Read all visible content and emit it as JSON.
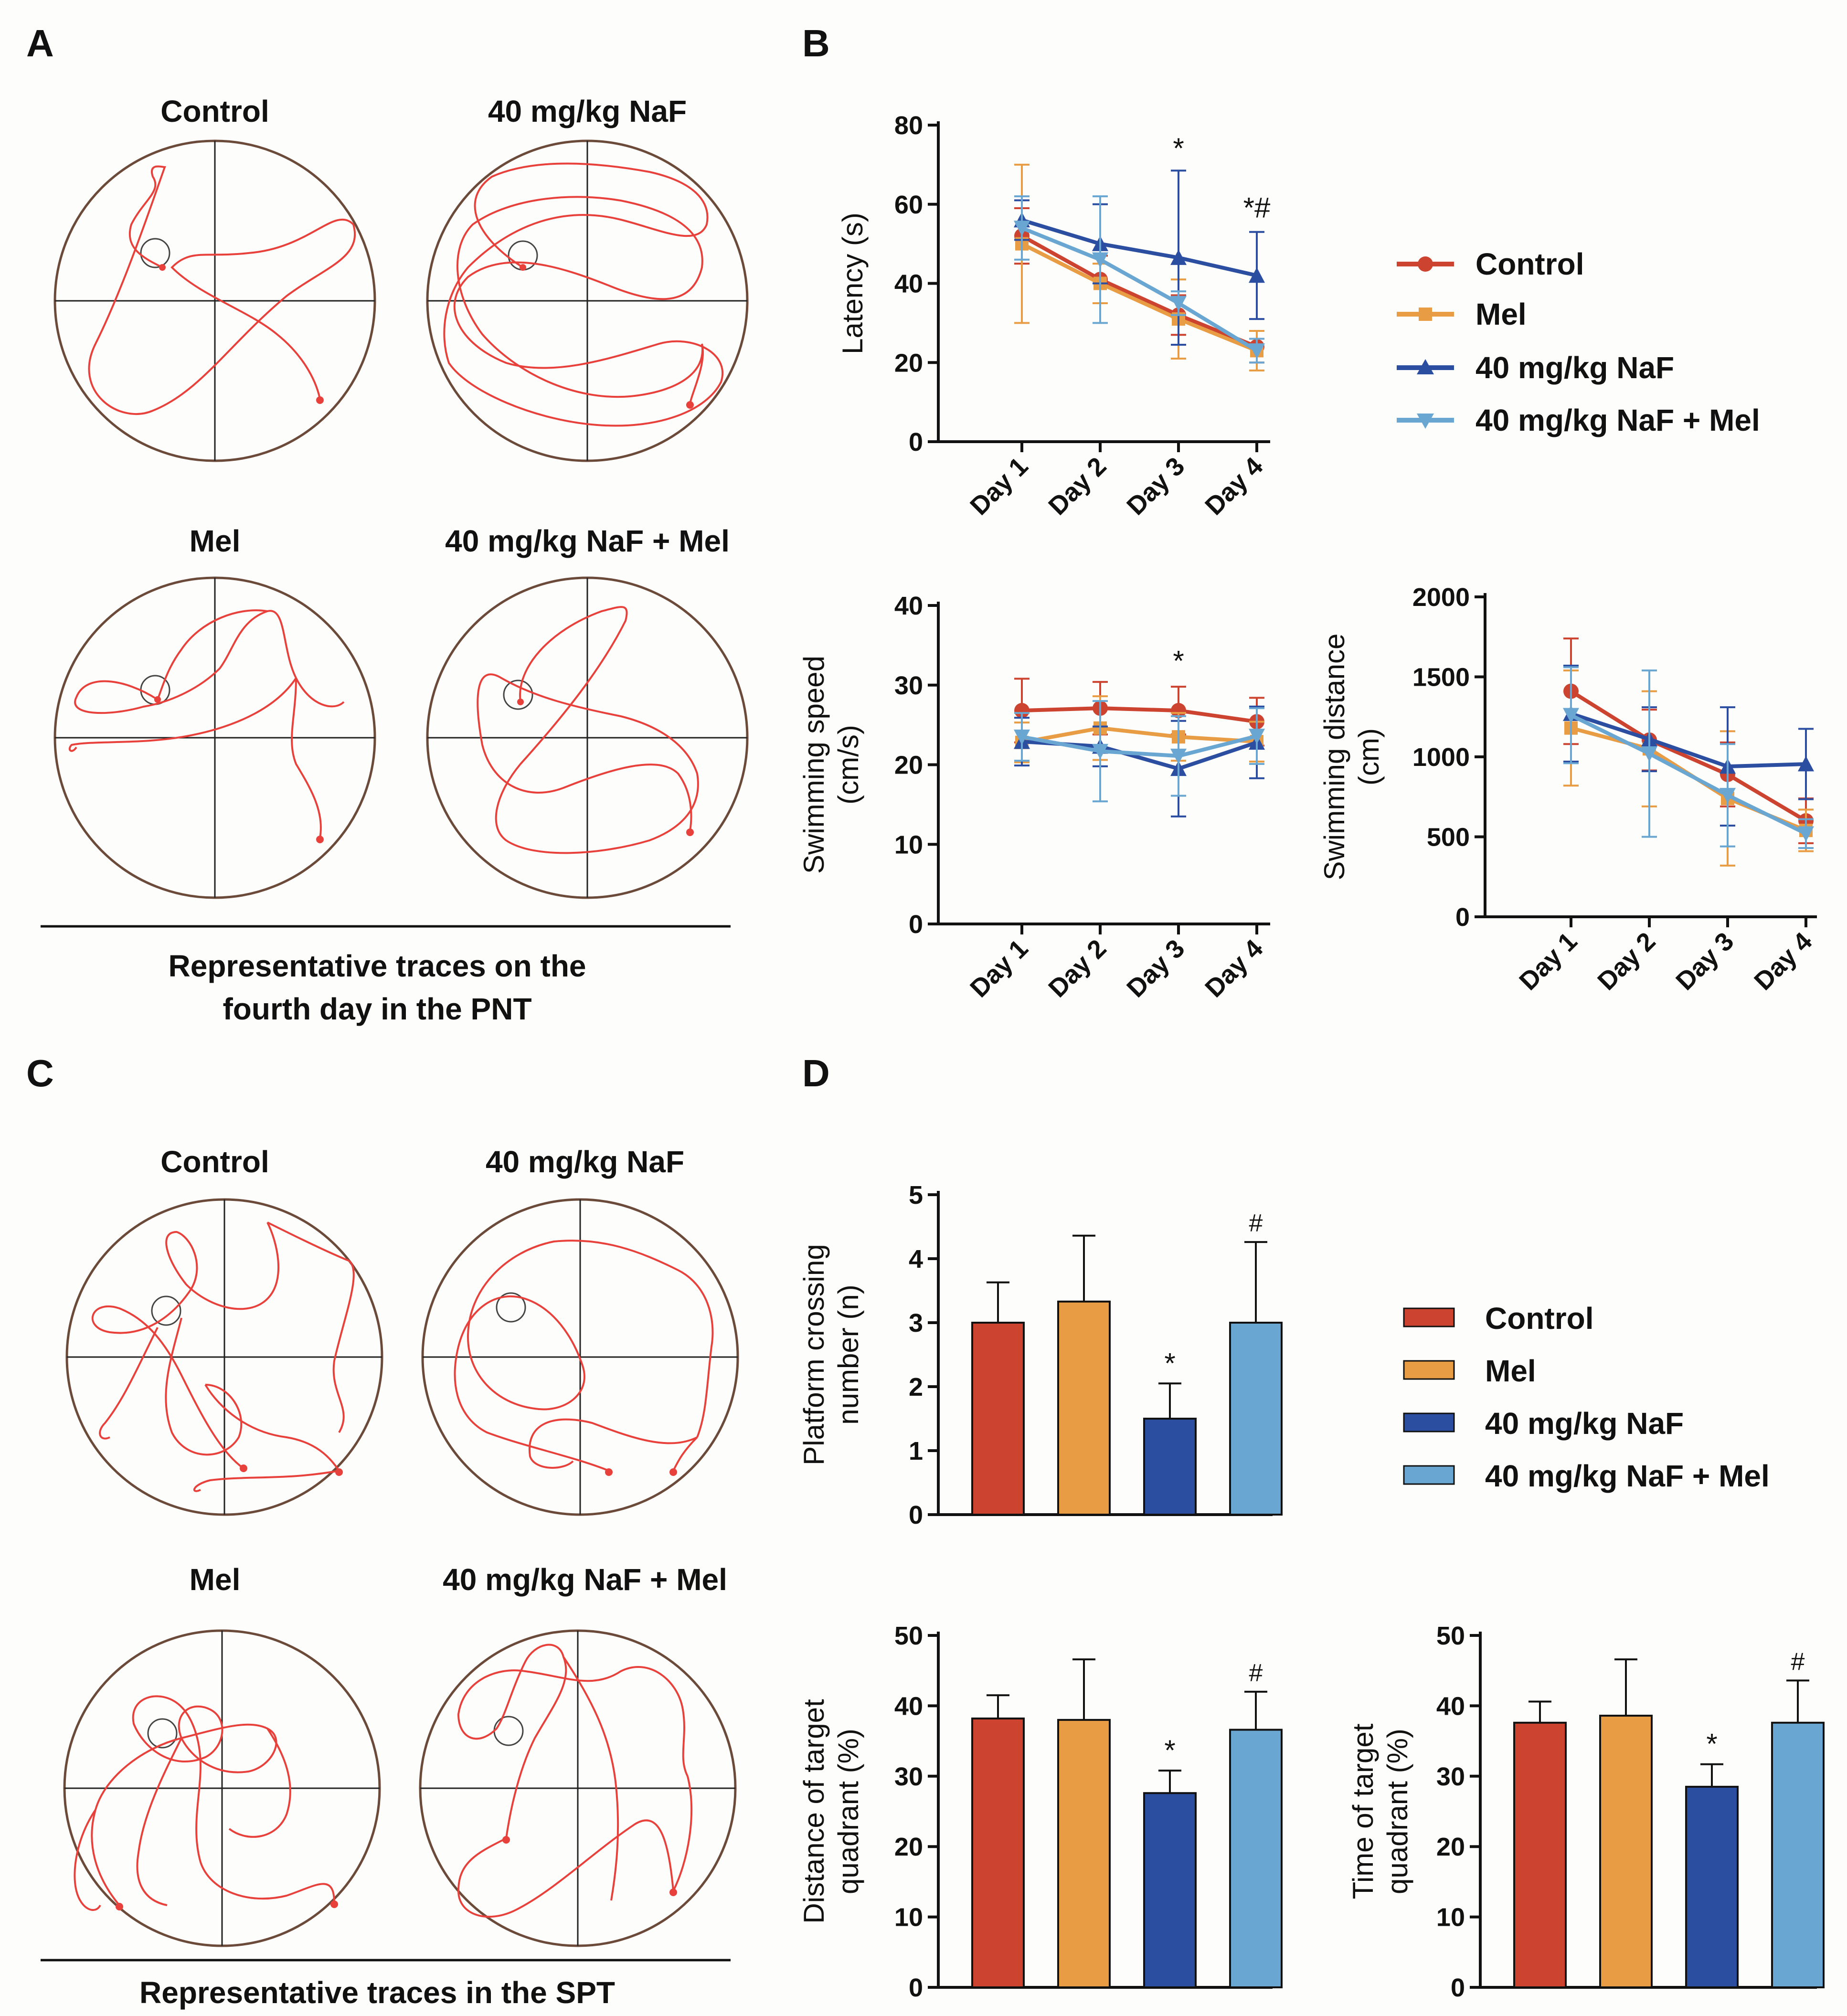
{
  "panels": {
    "a": {
      "letter": "A",
      "caption": [
        "Representative traces on the",
        "fourth day in the PNT"
      ],
      "mazes": [
        {
          "title": "Control",
          "trace": "pnt-control"
        },
        {
          "title": "40 mg/kg NaF",
          "trace": "pnt-naf"
        },
        {
          "title": "Mel",
          "trace": "pnt-mel"
        },
        {
          "title": "40 mg/kg NaF + Mel",
          "trace": "pnt-naf-mel"
        }
      ]
    },
    "b": {
      "letter": "B"
    },
    "c": {
      "letter": "C",
      "caption": [
        "Representative traces in the SPT"
      ],
      "mazes": [
        {
          "title": "Control",
          "trace": "spt-control"
        },
        {
          "title": "40 mg/kg NaF",
          "trace": "spt-naf"
        },
        {
          "title": "Mel",
          "trace": "spt-mel"
        },
        {
          "title": "40 mg/kg NaF + Mel",
          "trace": "spt-naf-mel"
        }
      ]
    },
    "d": {
      "letter": "D"
    }
  },
  "groups": [
    "Control",
    "Mel",
    "40 mg/kg NaF",
    "40 mg/kg NaF + Mel"
  ],
  "colors": {
    "control": "#cc4330",
    "mel": "#e89c43",
    "naf": "#2c4ea0",
    "naf_mel": "#6aa6d2",
    "trace": "#e8403a",
    "axis": "#111111"
  },
  "chart_data": [
    {
      "id": "latency",
      "type": "line",
      "title": "",
      "ylabel": "Latency (s)",
      "xlabel": "",
      "categories": [
        "Day 1",
        "Day 2",
        "Day 3",
        "Day 4"
      ],
      "ylim": [
        0,
        80
      ],
      "yticks": [
        0,
        20,
        40,
        60,
        80
      ],
      "series": [
        {
          "name": "Control",
          "values": [
            52,
            41,
            32,
            24
          ],
          "errors": [
            7,
            6,
            5,
            4
          ]
        },
        {
          "name": "Mel",
          "values": [
            50,
            40,
            31,
            23
          ],
          "errors": [
            20,
            5,
            10,
            5
          ]
        },
        {
          "name": "40 mg/kg NaF",
          "values": [
            56,
            50,
            46.5,
            42
          ],
          "errors": [
            5,
            10,
            22,
            11
          ]
        },
        {
          "name": "40 mg/kg NaF + Mel",
          "values": [
            54,
            46,
            35,
            23
          ],
          "errors": [
            8,
            16,
            3,
            3
          ]
        }
      ],
      "annotations": [
        {
          "category": "Day 3",
          "text": "*",
          "value": 69
        },
        {
          "category": "Day 4",
          "text": "*#",
          "value": 54
        }
      ]
    },
    {
      "id": "speed",
      "type": "line",
      "title": "",
      "ylabel": [
        "Swimming speed",
        "(cm/s)"
      ],
      "xlabel": "",
      "categories": [
        "Day 1",
        "Day 2",
        "Day 3",
        "Day 4"
      ],
      "ylim": [
        0,
        40
      ],
      "yticks": [
        0,
        10,
        20,
        30,
        40
      ],
      "series": [
        {
          "name": "Control",
          "values": [
            26.8,
            27.1,
            26.8,
            25.4
          ],
          "errors": [
            4,
            3.3,
            3,
            3
          ]
        },
        {
          "name": "Mel",
          "values": [
            22.8,
            24.6,
            23.5,
            22.9
          ],
          "errors": [
            2.5,
            4,
            3,
            2.5
          ]
        },
        {
          "name": "40 mg/kg NaF",
          "values": [
            22.9,
            22.3,
            19.5,
            22.8
          ],
          "errors": [
            3,
            2.5,
            6,
            4.5
          ]
        },
        {
          "name": "40 mg/kg NaF + Mel",
          "values": [
            23.5,
            21.7,
            21.1,
            23.6
          ],
          "errors": [
            3,
            6.3,
            5,
            3.5
          ]
        }
      ],
      "annotations": [
        {
          "category": "Day 3",
          "text": "*",
          "value": 30.5
        }
      ]
    },
    {
      "id": "distance",
      "type": "line",
      "title": "",
      "ylabel": [
        "Swimming distance",
        "(cm)"
      ],
      "xlabel": "",
      "categories": [
        "Day 1",
        "Day 2",
        "Day 3",
        "Day 4"
      ],
      "ylim": [
        0,
        2000
      ],
      "yticks": [
        0,
        500,
        1000,
        1500,
        2000
      ],
      "series": [
        {
          "name": "Control",
          "values": [
            1410,
            1105,
            890,
            600
          ],
          "errors": [
            330,
            190,
            200,
            140
          ]
        },
        {
          "name": "Mel",
          "values": [
            1180,
            1050,
            740,
            540
          ],
          "errors": [
            360,
            360,
            420,
            130
          ]
        },
        {
          "name": "40 mg/kg NaF",
          "values": [
            1270,
            1110,
            940,
            955
          ],
          "errors": [
            300,
            200,
            370,
            220
          ]
        },
        {
          "name": "40 mg/kg NaF + Mel",
          "values": [
            1260,
            1020,
            760,
            520
          ],
          "errors": [
            300,
            520,
            320,
            90
          ]
        }
      ],
      "annotations": []
    },
    {
      "id": "crossing",
      "type": "bar",
      "title": "",
      "ylabel": [
        "Platform crossing",
        "number (n)"
      ],
      "xlabel": "",
      "categories": [
        "Control",
        "Mel",
        "40 mg/kg NaF",
        "40 mg/kg NaF + Mel"
      ],
      "ylim": [
        0,
        5
      ],
      "yticks": [
        0,
        1,
        2,
        3,
        4,
        5
      ],
      "values": [
        3.0,
        3.33,
        1.5,
        3.0
      ],
      "errors": [
        0.63,
        1.03,
        0.55,
        1.26
      ],
      "annotations": [
        "",
        "",
        "*",
        "#"
      ]
    },
    {
      "id": "target-distance",
      "type": "bar",
      "title": "",
      "ylabel": [
        "Distance of target",
        "quadrant (%)"
      ],
      "xlabel": "",
      "categories": [
        "Control",
        "Mel",
        "40 mg/kg NaF",
        "40 mg/kg NaF + Mel"
      ],
      "ylim": [
        0,
        50
      ],
      "yticks": [
        0,
        10,
        20,
        30,
        40,
        50
      ],
      "values": [
        38.2,
        38.0,
        27.6,
        36.6
      ],
      "errors": [
        3.3,
        8.6,
        3.2,
        5.4
      ],
      "annotations": [
        "",
        "",
        "*",
        "#"
      ]
    },
    {
      "id": "target-time",
      "type": "bar",
      "title": "",
      "ylabel": [
        "Time of target",
        "quadrant (%)"
      ],
      "xlabel": "",
      "categories": [
        "Control",
        "Mel",
        "40 mg/kg NaF",
        "40 mg/kg NaF + Mel"
      ],
      "ylim": [
        0,
        50
      ],
      "yticks": [
        0,
        10,
        20,
        30,
        40,
        50
      ],
      "values": [
        37.6,
        38.6,
        28.5,
        37.6
      ],
      "errors": [
        3.0,
        8.0,
        3.2,
        6.0
      ],
      "annotations": [
        "",
        "",
        "*",
        "#"
      ]
    }
  ]
}
